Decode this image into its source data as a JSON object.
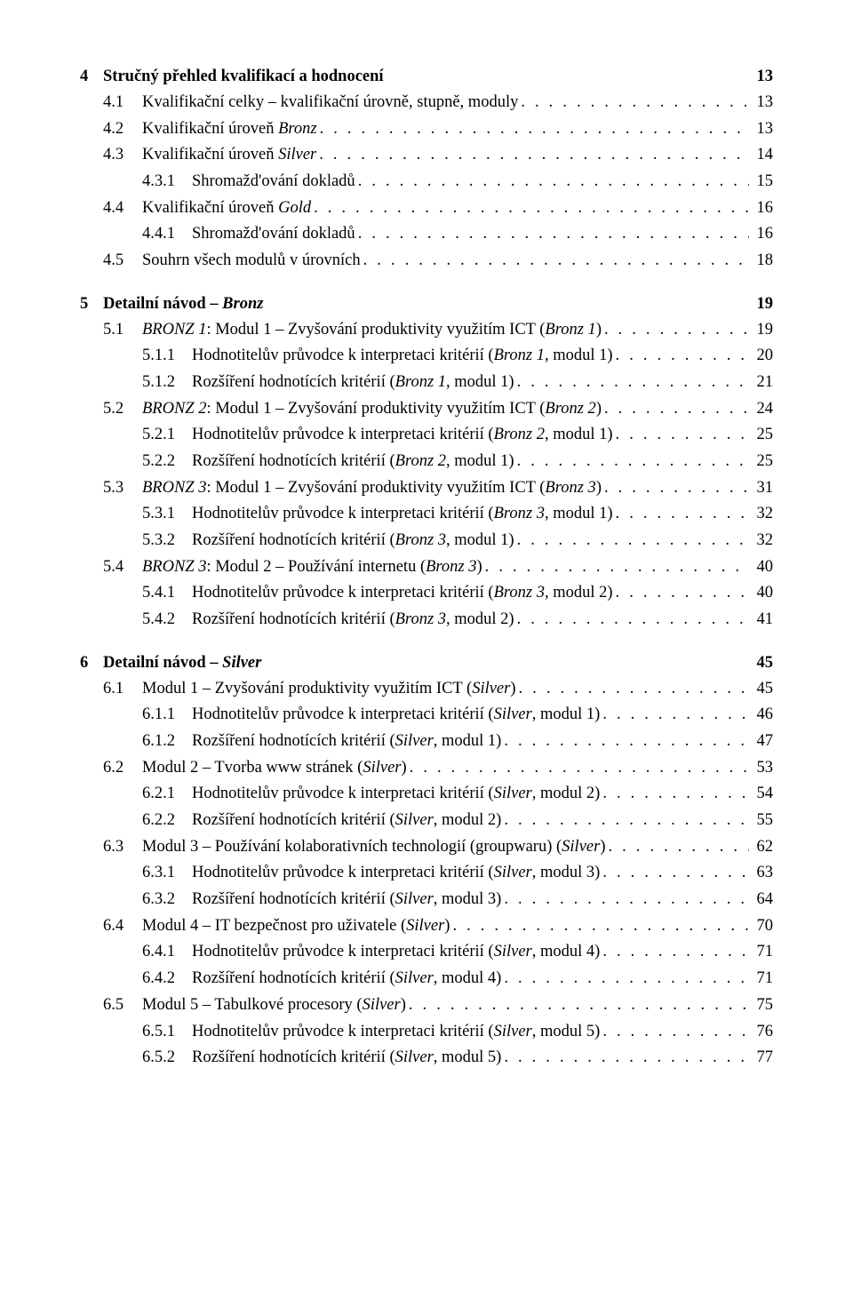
{
  "dots": ". . . . . . . . . . . . . . . . . . . . . . . . . . . . . . . . . . . . . . . . . . . . . . . . . . . . . . . . . . . . . . . . . . . . . . . . . . . . . . . . . . . . . . . . . . . . . . . . . . . . . . . . . . . . . . . . . . . . . . . .",
  "chapters": [
    {
      "num": "4",
      "title": "Stručný přehled kvalifikací a hodnocení",
      "page": "13",
      "entries": [
        {
          "lvl": 1,
          "num": "4.1",
          "label_parts": [
            [
              "",
              "Kvalifikační celky – kvalifikační úrovně, stupně, moduly"
            ]
          ],
          "page": "13"
        },
        {
          "lvl": 1,
          "num": "4.2",
          "label_parts": [
            [
              "",
              "Kvalifikační úroveň "
            ],
            [
              "i",
              "Bronz"
            ]
          ],
          "page": "13"
        },
        {
          "lvl": 1,
          "num": "4.3",
          "label_parts": [
            [
              "",
              "Kvalifikační úroveň "
            ],
            [
              "i",
              "Silver"
            ]
          ],
          "page": "14"
        },
        {
          "lvl": 2,
          "num": "4.3.1",
          "label_parts": [
            [
              "",
              "Shromažd'ování dokladů"
            ]
          ],
          "page": "15"
        },
        {
          "lvl": 1,
          "num": "4.4",
          "label_parts": [
            [
              "",
              "Kvalifikační úroveň "
            ],
            [
              "i",
              "Gold"
            ]
          ],
          "page": "16"
        },
        {
          "lvl": 2,
          "num": "4.4.1",
          "label_parts": [
            [
              "",
              "Shromažd'ování dokladů"
            ]
          ],
          "page": "16"
        },
        {
          "lvl": 1,
          "num": "4.5",
          "label_parts": [
            [
              "",
              "Souhrn všech modulů v úrovních"
            ]
          ],
          "page": "18"
        }
      ]
    },
    {
      "num": "5",
      "title_parts": [
        [
          "",
          "Detailní návod – "
        ],
        [
          "bi",
          "Bronz"
        ]
      ],
      "page": "19",
      "entries": [
        {
          "lvl": 1,
          "num": "5.1",
          "label_parts": [
            [
              "i",
              "BRONZ 1"
            ],
            [
              "",
              ": Modul 1 – Zvyšování produktivity využitím ICT ("
            ],
            [
              "i",
              "Bronz 1"
            ],
            [
              "",
              ")"
            ]
          ],
          "page": "19"
        },
        {
          "lvl": 2,
          "num": "5.1.1",
          "label_parts": [
            [
              "",
              "Hodnotitelův průvodce k interpretaci kritérií ("
            ],
            [
              "i",
              "Bronz 1"
            ],
            [
              "",
              ", modul 1)"
            ]
          ],
          "page": "20"
        },
        {
          "lvl": 2,
          "num": "5.1.2",
          "label_parts": [
            [
              "",
              "Rozšíření hodnotících kritérií ("
            ],
            [
              "i",
              "Bronz 1"
            ],
            [
              "",
              ", modul 1)"
            ]
          ],
          "page": "21"
        },
        {
          "lvl": 1,
          "num": "5.2",
          "label_parts": [
            [
              "i",
              "BRONZ 2"
            ],
            [
              "",
              ": Modul 1 – Zvyšování produktivity využitím ICT ("
            ],
            [
              "i",
              "Bronz 2"
            ],
            [
              "",
              ")"
            ]
          ],
          "page": "24"
        },
        {
          "lvl": 2,
          "num": "5.2.1",
          "label_parts": [
            [
              "",
              "Hodnotitelův průvodce k interpretaci kritérií ("
            ],
            [
              "i",
              "Bronz 2"
            ],
            [
              "",
              ", modul 1)"
            ]
          ],
          "page": "25"
        },
        {
          "lvl": 2,
          "num": "5.2.2",
          "label_parts": [
            [
              "",
              "Rozšíření hodnotících kritérií ("
            ],
            [
              "i",
              "Bronz 2"
            ],
            [
              "",
              ", modul 1)"
            ]
          ],
          "page": "25"
        },
        {
          "lvl": 1,
          "num": "5.3",
          "label_parts": [
            [
              "i",
              "BRONZ 3"
            ],
            [
              "",
              ": Modul 1 – Zvyšování produktivity využitím ICT ("
            ],
            [
              "i",
              "Bronz 3"
            ],
            [
              "",
              ")"
            ]
          ],
          "page": "31"
        },
        {
          "lvl": 2,
          "num": "5.3.1",
          "label_parts": [
            [
              "",
              "Hodnotitelův průvodce k interpretaci kritérií ("
            ],
            [
              "i",
              "Bronz 3"
            ],
            [
              "",
              ", modul 1)"
            ]
          ],
          "page": "32"
        },
        {
          "lvl": 2,
          "num": "5.3.2",
          "label_parts": [
            [
              "",
              "Rozšíření hodnotících kritérií ("
            ],
            [
              "i",
              "Bronz 3"
            ],
            [
              "",
              ", modul 1)"
            ]
          ],
          "page": "32"
        },
        {
          "lvl": 1,
          "num": "5.4",
          "label_parts": [
            [
              "i",
              "BRONZ 3"
            ],
            [
              "",
              ": Modul 2 – Používání internetu ("
            ],
            [
              "i",
              "Bronz 3"
            ],
            [
              "",
              ")"
            ]
          ],
          "page": "40"
        },
        {
          "lvl": 2,
          "num": "5.4.1",
          "label_parts": [
            [
              "",
              "Hodnotitelův průvodce k interpretaci kritérií ("
            ],
            [
              "i",
              "Bronz 3"
            ],
            [
              "",
              ", modul 2)"
            ]
          ],
          "page": "40"
        },
        {
          "lvl": 2,
          "num": "5.4.2",
          "label_parts": [
            [
              "",
              "Rozšíření hodnotících kritérií ("
            ],
            [
              "i",
              "Bronz 3"
            ],
            [
              "",
              ", modul 2)"
            ]
          ],
          "page": "41"
        }
      ]
    },
    {
      "num": "6",
      "title_parts": [
        [
          "",
          "Detailní návod – "
        ],
        [
          "bi",
          "Silver"
        ]
      ],
      "page": "45",
      "entries": [
        {
          "lvl": 1,
          "num": "6.1",
          "label_parts": [
            [
              "",
              "Modul 1 – Zvyšování produktivity využitím ICT ("
            ],
            [
              "i",
              "Silver"
            ],
            [
              "",
              ")"
            ]
          ],
          "page": "45"
        },
        {
          "lvl": 2,
          "num": "6.1.1",
          "label_parts": [
            [
              "",
              "Hodnotitelův průvodce k interpretaci kritérií ("
            ],
            [
              "i",
              "Silver"
            ],
            [
              "",
              ", modul 1)"
            ]
          ],
          "page": "46"
        },
        {
          "lvl": 2,
          "num": "6.1.2",
          "label_parts": [
            [
              "",
              "Rozšíření hodnotících kritérií ("
            ],
            [
              "i",
              "Silver"
            ],
            [
              "",
              ", modul 1)"
            ]
          ],
          "page": "47"
        },
        {
          "lvl": 1,
          "num": "6.2",
          "label_parts": [
            [
              "",
              "Modul 2 – Tvorba www stránek ("
            ],
            [
              "i",
              "Silver"
            ],
            [
              "",
              ")"
            ]
          ],
          "page": "53"
        },
        {
          "lvl": 2,
          "num": "6.2.1",
          "label_parts": [
            [
              "",
              "Hodnotitelův průvodce k interpretaci kritérií ("
            ],
            [
              "i",
              "Silver"
            ],
            [
              "",
              ", modul 2)"
            ]
          ],
          "page": "54"
        },
        {
          "lvl": 2,
          "num": "6.2.2",
          "label_parts": [
            [
              "",
              "Rozšíření hodnotících kritérií ("
            ],
            [
              "i",
              "Silver"
            ],
            [
              "",
              ", modul 2)"
            ]
          ],
          "page": "55"
        },
        {
          "lvl": 1,
          "num": "6.3",
          "label_parts": [
            [
              "",
              "Modul 3 – Používání kolaborativních technologií (groupwaru) ("
            ],
            [
              "i",
              "Silver"
            ],
            [
              "",
              ")"
            ]
          ],
          "page": "62"
        },
        {
          "lvl": 2,
          "num": "6.3.1",
          "label_parts": [
            [
              "",
              "Hodnotitelův průvodce k interpretaci kritérií ("
            ],
            [
              "i",
              "Silver"
            ],
            [
              "",
              ", modul 3)"
            ]
          ],
          "page": "63"
        },
        {
          "lvl": 2,
          "num": "6.3.2",
          "label_parts": [
            [
              "",
              "Rozšíření hodnotících kritérií ("
            ],
            [
              "i",
              "Silver"
            ],
            [
              "",
              ", modul 3)"
            ]
          ],
          "page": "64"
        },
        {
          "lvl": 1,
          "num": "6.4",
          "label_parts": [
            [
              "",
              "Modul 4 – IT bezpečnost pro uživatele ("
            ],
            [
              "i",
              "Silver"
            ],
            [
              "",
              ")"
            ]
          ],
          "page": "70"
        },
        {
          "lvl": 2,
          "num": "6.4.1",
          "label_parts": [
            [
              "",
              "Hodnotitelův průvodce k interpretaci kritérií ("
            ],
            [
              "i",
              "Silver"
            ],
            [
              "",
              ", modul 4)"
            ]
          ],
          "page": "71"
        },
        {
          "lvl": 2,
          "num": "6.4.2",
          "label_parts": [
            [
              "",
              "Rozšíření hodnotících kritérií ("
            ],
            [
              "i",
              "Silver"
            ],
            [
              "",
              ", modul 4)"
            ]
          ],
          "page": "71"
        },
        {
          "lvl": 1,
          "num": "6.5",
          "label_parts": [
            [
              "",
              "Modul 5 – Tabulkové procesory ("
            ],
            [
              "i",
              "Silver"
            ],
            [
              "",
              ")"
            ]
          ],
          "page": "75"
        },
        {
          "lvl": 2,
          "num": "6.5.1",
          "label_parts": [
            [
              "",
              "Hodnotitelův průvodce k interpretaci kritérií ("
            ],
            [
              "i",
              "Silver"
            ],
            [
              "",
              ", modul 5)"
            ]
          ],
          "page": "76"
        },
        {
          "lvl": 2,
          "num": "6.5.2",
          "label_parts": [
            [
              "",
              "Rozšíření hodnotících kritérií ("
            ],
            [
              "i",
              "Silver"
            ],
            [
              "",
              ", modul 5)"
            ]
          ],
          "page": "77"
        }
      ]
    }
  ]
}
